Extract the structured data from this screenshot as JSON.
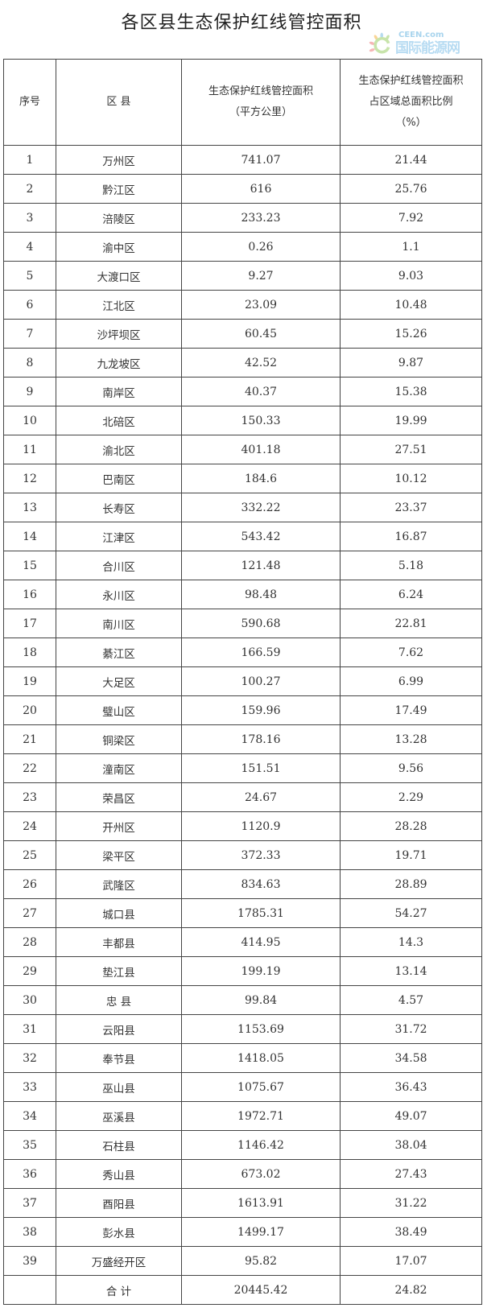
{
  "title": "各区县生态保护红线管控面积",
  "headers": {
    "index": "序号",
    "district": "区 县",
    "area_line1": "生态保护红线管控面积",
    "area_line2": "（平方公里）",
    "ratio_line1": "生态保护红线管控面积",
    "ratio_line2": "占区域总面积比例",
    "ratio_line3": "（%）"
  },
  "rows": [
    {
      "no": "1",
      "name": "万州区",
      "area": "741.07",
      "ratio": "21.44"
    },
    {
      "no": "2",
      "name": "黔江区",
      "area": "616",
      "ratio": "25.76"
    },
    {
      "no": "3",
      "name": "涪陵区",
      "area": "233.23",
      "ratio": "7.92"
    },
    {
      "no": "4",
      "name": "渝中区",
      "area": "0.26",
      "ratio": "1.1"
    },
    {
      "no": "5",
      "name": "大渡口区",
      "area": "9.27",
      "ratio": "9.03"
    },
    {
      "no": "6",
      "name": "江北区",
      "area": "23.09",
      "ratio": "10.48"
    },
    {
      "no": "7",
      "name": "沙坪坝区",
      "area": "60.45",
      "ratio": "15.26"
    },
    {
      "no": "8",
      "name": "九龙坡区",
      "area": "42.52",
      "ratio": "9.87"
    },
    {
      "no": "9",
      "name": "南岸区",
      "area": "40.37",
      "ratio": "15.38"
    },
    {
      "no": "10",
      "name": "北碚区",
      "area": "150.33",
      "ratio": "19.99"
    },
    {
      "no": "11",
      "name": "渝北区",
      "area": "401.18",
      "ratio": "27.51"
    },
    {
      "no": "12",
      "name": "巴南区",
      "area": "184.6",
      "ratio": "10.12"
    },
    {
      "no": "13",
      "name": "长寿区",
      "area": "332.22",
      "ratio": "23.37"
    },
    {
      "no": "14",
      "name": "江津区",
      "area": "543.42",
      "ratio": "16.87"
    },
    {
      "no": "15",
      "name": "合川区",
      "area": "121.48",
      "ratio": "5.18"
    },
    {
      "no": "16",
      "name": "永川区",
      "area": "98.48",
      "ratio": "6.24"
    },
    {
      "no": "17",
      "name": "南川区",
      "area": "590.68",
      "ratio": "22.81"
    },
    {
      "no": "18",
      "name": "綦江区",
      "area": "166.59",
      "ratio": "7.62"
    },
    {
      "no": "19",
      "name": "大足区",
      "area": "100.27",
      "ratio": "6.99"
    },
    {
      "no": "20",
      "name": "璧山区",
      "area": "159.96",
      "ratio": "17.49"
    },
    {
      "no": "21",
      "name": "铜梁区",
      "area": "178.16",
      "ratio": "13.28"
    },
    {
      "no": "22",
      "name": "潼南区",
      "area": "151.51",
      "ratio": "9.56"
    },
    {
      "no": "23",
      "name": "荣昌区",
      "area": "24.67",
      "ratio": "2.29"
    },
    {
      "no": "24",
      "name": "开州区",
      "area": "1120.9",
      "ratio": "28.28"
    },
    {
      "no": "25",
      "name": "梁平区",
      "area": "372.33",
      "ratio": "19.71"
    },
    {
      "no": "26",
      "name": "武隆区",
      "area": "834.63",
      "ratio": "28.89"
    },
    {
      "no": "27",
      "name": "城口县",
      "area": "1785.31",
      "ratio": "54.27"
    },
    {
      "no": "28",
      "name": "丰都县",
      "area": "414.95",
      "ratio": "14.3"
    },
    {
      "no": "29",
      "name": "垫江县",
      "area": "199.19",
      "ratio": "13.14"
    },
    {
      "no": "30",
      "name": "忠 县",
      "area": "99.84",
      "ratio": "4.57"
    },
    {
      "no": "31",
      "name": "云阳县",
      "area": "1153.69",
      "ratio": "31.72"
    },
    {
      "no": "32",
      "name": "奉节县",
      "area": "1418.05",
      "ratio": "34.58"
    },
    {
      "no": "33",
      "name": "巫山县",
      "area": "1075.67",
      "ratio": "36.43"
    },
    {
      "no": "34",
      "name": "巫溪县",
      "area": "1972.71",
      "ratio": "49.07"
    },
    {
      "no": "35",
      "name": "石柱县",
      "area": "1146.42",
      "ratio": "38.04"
    },
    {
      "no": "36",
      "name": "秀山县",
      "area": "673.02",
      "ratio": "27.43"
    },
    {
      "no": "37",
      "name": "酉阳县",
      "area": "1613.91",
      "ratio": "31.22"
    },
    {
      "no": "38",
      "name": "彭水县",
      "area": "1499.17",
      "ratio": "38.49"
    },
    {
      "no": "39",
      "name": "万盛经开区",
      "area": "95.82",
      "ratio": "17.07"
    }
  ],
  "total": {
    "label": "合 计",
    "area": "20445.42",
    "ratio": "24.82"
  },
  "watermark": {
    "en": "CEEN.com",
    "cn": "国际能源网"
  }
}
